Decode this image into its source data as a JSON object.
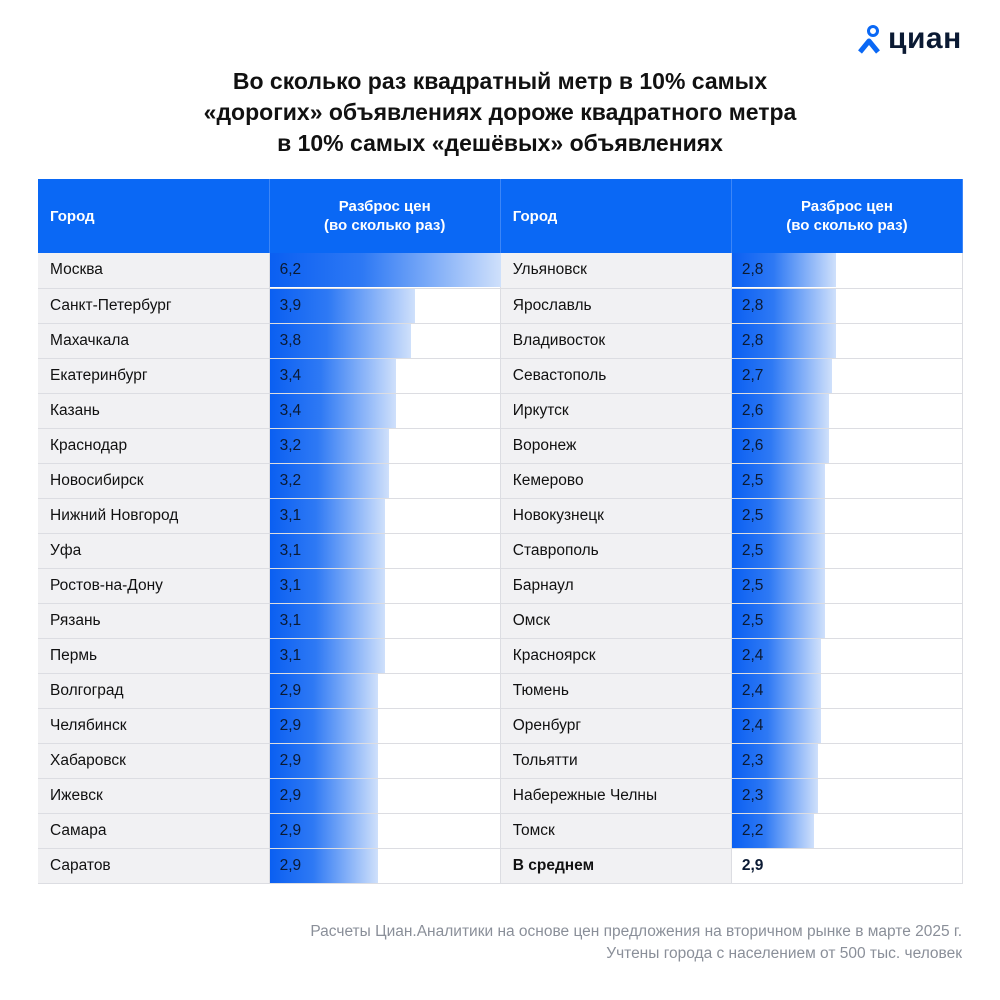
{
  "logo": {
    "text": "циан",
    "color": "#0a68f5"
  },
  "title": [
    "Во сколько раз квадратный метр в 10% самых",
    "«дорогих» объявлениях дороже квадратного метра",
    "в 10% самых «дешёвых» объявлениях"
  ],
  "headers": {
    "city": "Город",
    "value_line1": "Разброс цен",
    "value_line2": "(во сколько раз)"
  },
  "chart_data": {
    "type": "table",
    "title": "Во сколько раз квадратный метр в 10% самых «дорогих» объявлениях дороже квадратного метра в 10% самых «дешёвых» объявлениях",
    "max": 6.2,
    "left": [
      {
        "city": "Москва",
        "value": 6.2,
        "label": "6,2"
      },
      {
        "city": "Санкт-Петербург",
        "value": 3.9,
        "label": "3,9"
      },
      {
        "city": "Махачкала",
        "value": 3.8,
        "label": "3,8"
      },
      {
        "city": "Екатеринбург",
        "value": 3.4,
        "label": "3,4"
      },
      {
        "city": "Казань",
        "value": 3.4,
        "label": "3,4"
      },
      {
        "city": "Краснодар",
        "value": 3.2,
        "label": "3,2"
      },
      {
        "city": "Новосибирск",
        "value": 3.2,
        "label": "3,2"
      },
      {
        "city": "Нижний Новгород",
        "value": 3.1,
        "label": "3,1"
      },
      {
        "city": "Уфа",
        "value": 3.1,
        "label": "3,1"
      },
      {
        "city": "Ростов-на-Дону",
        "value": 3.1,
        "label": "3,1"
      },
      {
        "city": "Рязань",
        "value": 3.1,
        "label": "3,1"
      },
      {
        "city": "Пермь",
        "value": 3.1,
        "label": "3,1"
      },
      {
        "city": "Волгоград",
        "value": 2.9,
        "label": "2,9"
      },
      {
        "city": "Челябинск",
        "value": 2.9,
        "label": "2,9"
      },
      {
        "city": "Хабаровск",
        "value": 2.9,
        "label": "2,9"
      },
      {
        "city": "Ижевск",
        "value": 2.9,
        "label": "2,9"
      },
      {
        "city": "Самара",
        "value": 2.9,
        "label": "2,9"
      },
      {
        "city": "Саратов",
        "value": 2.9,
        "label": "2,9"
      }
    ],
    "right": [
      {
        "city": "Ульяновск",
        "value": 2.8,
        "label": "2,8"
      },
      {
        "city": "Ярославль",
        "value": 2.8,
        "label": "2,8"
      },
      {
        "city": "Владивосток",
        "value": 2.8,
        "label": "2,8"
      },
      {
        "city": "Севастополь",
        "value": 2.7,
        "label": "2,7"
      },
      {
        "city": "Иркутск",
        "value": 2.6,
        "label": "2,6"
      },
      {
        "city": "Воронеж",
        "value": 2.6,
        "label": "2,6"
      },
      {
        "city": "Кемерово",
        "value": 2.5,
        "label": "2,5"
      },
      {
        "city": "Новокузнецк",
        "value": 2.5,
        "label": "2,5"
      },
      {
        "city": "Ставрополь",
        "value": 2.5,
        "label": "2,5"
      },
      {
        "city": "Барнаул",
        "value": 2.5,
        "label": "2,5"
      },
      {
        "city": "Омск",
        "value": 2.5,
        "label": "2,5"
      },
      {
        "city": "Красноярск",
        "value": 2.4,
        "label": "2,4"
      },
      {
        "city": "Тюмень",
        "value": 2.4,
        "label": "2,4"
      },
      {
        "city": "Оренбург",
        "value": 2.4,
        "label": "2,4"
      },
      {
        "city": "Тольятти",
        "value": 2.3,
        "label": "2,3"
      },
      {
        "city": "Набережные Челны",
        "value": 2.3,
        "label": "2,3"
      },
      {
        "city": "Томск",
        "value": 2.2,
        "label": "2,2"
      },
      {
        "city": "В среднем",
        "value": 2.9,
        "label": "2,9",
        "summary": true
      }
    ]
  },
  "footer": [
    "Расчеты Циан.Аналитики на основе цен предложения на вторичном рынке в марте 2025 г.",
    "Учтены города с населением от 500 тыс. человек"
  ]
}
